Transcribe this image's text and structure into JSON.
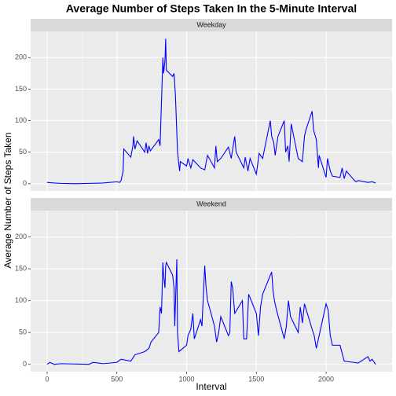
{
  "chart_data": {
    "type": "line",
    "title": "Average Number of Steps Taken In the 5-Minute Interval",
    "xlabel": "Interval",
    "ylabel": "Average Number of Steps Taken",
    "facet": true,
    "grid": true,
    "xlim": [
      -118,
      2473
    ],
    "xticks": [
      0,
      500,
      1000,
      1500,
      2000
    ],
    "ylim": [
      -11.5,
      241.5
    ],
    "yticks": [
      0,
      50,
      100,
      150,
      200
    ],
    "series": [
      {
        "name": "Weekday",
        "color": "#0000ff",
        "x": [
          0,
          50,
          100,
          200,
          300,
          400,
          500,
          520,
          530,
          545,
          550,
          600,
          615,
          620,
          630,
          645,
          700,
          710,
          720,
          730,
          740,
          800,
          810,
          830,
          835,
          845,
          850,
          855,
          900,
          910,
          920,
          935,
          950,
          955,
          1000,
          1010,
          1030,
          1045,
          1100,
          1130,
          1150,
          1200,
          1210,
          1220,
          1245,
          1300,
          1320,
          1345,
          1355,
          1410,
          1420,
          1440,
          1455,
          1500,
          1520,
          1545,
          1600,
          1610,
          1625,
          1635,
          1655,
          1700,
          1710,
          1725,
          1735,
          1750,
          1800,
          1830,
          1845,
          1855,
          1900,
          1910,
          1930,
          1945,
          1950,
          2000,
          2010,
          2030,
          2045,
          2100,
          2115,
          2130,
          2145,
          2200,
          2215,
          2230,
          2300,
          2330,
          2355
        ],
        "values": [
          2,
          1,
          0.5,
          0,
          0.5,
          1,
          3,
          2,
          5,
          20,
          55,
          42,
          60,
          75,
          55,
          68,
          50,
          65,
          48,
          60,
          52,
          70,
          60,
          200,
          175,
          195,
          230,
          180,
          170,
          175,
          140,
          50,
          20,
          35,
          28,
          40,
          25,
          38,
          25,
          22,
          45,
          25,
          60,
          35,
          40,
          58,
          40,
          75,
          50,
          25,
          42,
          20,
          40,
          15,
          48,
          40,
          100,
          75,
          65,
          45,
          75,
          100,
          50,
          60,
          35,
          95,
          40,
          35,
          75,
          85,
          115,
          85,
          70,
          25,
          45,
          10,
          40,
          20,
          12,
          10,
          25,
          8,
          20,
          6,
          3,
          5,
          2,
          3,
          1
        ]
      },
      {
        "name": "Weekend",
        "color": "#0000ff",
        "x": [
          0,
          20,
          50,
          100,
          300,
          330,
          400,
          500,
          530,
          600,
          630,
          700,
          730,
          745,
          800,
          810,
          820,
          830,
          835,
          845,
          850,
          855,
          900,
          910,
          915,
          930,
          935,
          945,
          1000,
          1010,
          1030,
          1045,
          1055,
          1100,
          1110,
          1130,
          1140,
          1150,
          1200,
          1215,
          1230,
          1245,
          1300,
          1310,
          1320,
          1330,
          1345,
          1400,
          1410,
          1430,
          1445,
          1500,
          1515,
          1530,
          1545,
          1600,
          1610,
          1620,
          1630,
          1645,
          1700,
          1715,
          1730,
          1745,
          1800,
          1815,
          1830,
          1845,
          1900,
          1915,
          1930,
          1945,
          2000,
          2015,
          2030,
          2045,
          2100,
          2130,
          2200,
          2230,
          2300,
          2315,
          2330,
          2355
        ],
        "values": [
          0,
          3,
          0,
          1,
          0,
          3,
          1,
          3,
          8,
          5,
          15,
          20,
          25,
          35,
          50,
          90,
          80,
          160,
          140,
          120,
          155,
          160,
          140,
          120,
          60,
          165,
          50,
          20,
          30,
          45,
          55,
          80,
          40,
          70,
          60,
          155,
          120,
          100,
          60,
          35,
          50,
          75,
          45,
          50,
          130,
          120,
          80,
          100,
          40,
          40,
          110,
          80,
          45,
          90,
          110,
          140,
          145,
          115,
          100,
          85,
          40,
          60,
          100,
          75,
          50,
          90,
          65,
          95,
          55,
          45,
          25,
          40,
          95,
          85,
          45,
          30,
          30,
          5,
          3,
          2,
          12,
          5,
          8,
          0
        ]
      }
    ]
  }
}
